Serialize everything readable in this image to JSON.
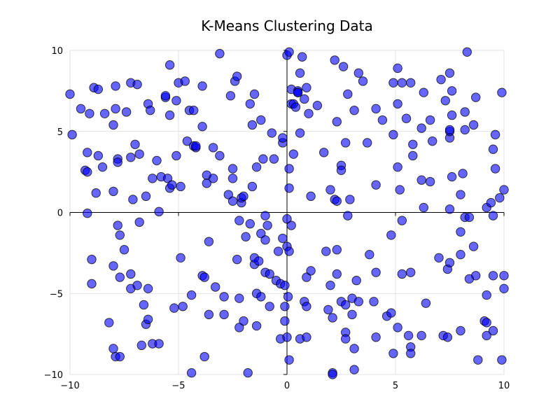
{
  "chart_data": {
    "type": "scatter",
    "title": "K-Means Clustering Data",
    "xlabel": "",
    "ylabel": "",
    "xlim": [
      -10,
      10
    ],
    "ylim": [
      -10,
      10
    ],
    "grid": true,
    "legend": null,
    "zero_lines": true,
    "x_ticks": [
      -10,
      -5,
      0,
      5,
      10
    ],
    "y_ticks": [
      -10,
      -5,
      0,
      5,
      10
    ],
    "x_tick_labels": [
      "−10",
      "−5",
      "0",
      "5",
      "10"
    ],
    "y_tick_labels": [
      "−10",
      "−5",
      "0",
      "5",
      "10"
    ],
    "colors": {
      "point_fill": "#0000ff",
      "point_edge": "#000000",
      "grid": "#d9d9d9",
      "axis": "#000000"
    },
    "series": [
      {
        "points": [
          [
            -10.0,
            7.3
          ],
          [
            -9.9,
            4.8
          ],
          [
            -9.5,
            6.4
          ],
          [
            -9.2,
            3.7
          ],
          [
            -9.3,
            2.6
          ],
          [
            -9.2,
            2.5
          ],
          [
            -9.2,
            -0.05
          ],
          [
            -9.1,
            6.1
          ],
          [
            -9.0,
            -2.9
          ],
          [
            -9.0,
            -4.4
          ],
          [
            -8.9,
            7.7
          ],
          [
            -8.8,
            1.2
          ],
          [
            -8.7,
            3.5
          ],
          [
            -8.7,
            7.6
          ],
          [
            -8.5,
            2.8
          ],
          [
            -8.4,
            6.1
          ],
          [
            -8.2,
            -6.8
          ],
          [
            -8.0,
            5.4
          ],
          [
            -8.0,
            1.3
          ],
          [
            -8.0,
            -3.3
          ],
          [
            -8.0,
            -8.4
          ],
          [
            -7.9,
            7.8
          ],
          [
            -7.9,
            6.4
          ],
          [
            -7.9,
            -8.9
          ],
          [
            -7.8,
            3.3
          ],
          [
            -7.8,
            3.1
          ],
          [
            -7.8,
            -0.8
          ],
          [
            -7.7,
            -1.4
          ],
          [
            -7.7,
            -4.0
          ],
          [
            -7.7,
            -8.9
          ],
          [
            -7.5,
            -2.3
          ],
          [
            -7.4,
            6.2
          ],
          [
            -7.2,
            8.0
          ],
          [
            -7.2,
            3.4
          ],
          [
            -7.2,
            -3.8
          ],
          [
            -7.2,
            -4.7
          ],
          [
            -7.1,
            0.8
          ],
          [
            -7.0,
            4.2
          ],
          [
            -6.9,
            7.9
          ],
          [
            -6.9,
            -4.5
          ],
          [
            -6.8,
            3.6
          ],
          [
            -6.8,
            -0.6
          ],
          [
            -6.7,
            -8.2
          ],
          [
            -6.6,
            -5.7
          ],
          [
            -6.5,
            1.0
          ],
          [
            -6.5,
            -6.9
          ],
          [
            -6.4,
            6.7
          ],
          [
            -6.4,
            -4.7
          ],
          [
            -6.4,
            -6.6
          ],
          [
            -6.3,
            6.3
          ],
          [
            -6.2,
            2.1
          ],
          [
            -6.2,
            -8.1
          ],
          [
            -6.0,
            3.2
          ],
          [
            -5.9,
            -8.1
          ],
          [
            -5.9,
            0.05
          ],
          [
            -5.8,
            2.2
          ],
          [
            -5.6,
            7.1
          ],
          [
            -5.6,
            7.2
          ],
          [
            -5.5,
            2.1
          ],
          [
            -5.4,
            9.1
          ],
          [
            -5.4,
            6.0
          ],
          [
            -5.4,
            1.5
          ],
          [
            -5.3,
            1.7
          ],
          [
            -5.2,
            -5.9
          ],
          [
            -5.1,
            3.5
          ],
          [
            -5.1,
            6.9
          ],
          [
            -5.0,
            8.0
          ],
          [
            -4.9,
            -2.8
          ],
          [
            -4.9,
            1.6
          ],
          [
            -4.8,
            -5.8
          ],
          [
            -4.7,
            8.1
          ],
          [
            -4.6,
            4.4
          ],
          [
            -4.5,
            6.3
          ],
          [
            -4.4,
            -5.1
          ],
          [
            -4.3,
            6.3
          ],
          [
            -4.3,
            4.1
          ],
          [
            -4.2,
            4.0
          ],
          [
            -4.2,
            4.1
          ],
          [
            -4.4,
            -9.9
          ],
          [
            -3.9,
            7.8
          ],
          [
            -3.9,
            5.3
          ],
          [
            -3.9,
            -3.9
          ],
          [
            -3.8,
            -4.0
          ],
          [
            -3.8,
            -8.9
          ],
          [
            -3.7,
            2.3
          ],
          [
            -3.7,
            1.8
          ],
          [
            -3.6,
            -1.8
          ],
          [
            -3.6,
            -6.3
          ],
          [
            -3.4,
            2.1
          ],
          [
            -3.4,
            4.0
          ],
          [
            -3.3,
            -4.6
          ],
          [
            -3.1,
            9.8
          ],
          [
            -3.1,
            3.5
          ],
          [
            -2.9,
            -5.2
          ],
          [
            -2.9,
            -6.3
          ],
          [
            -2.7,
            1.1
          ],
          [
            -2.6,
            7.2
          ],
          [
            -2.5,
            0.7
          ],
          [
            -2.5,
            2.1
          ],
          [
            -2.5,
            2.7
          ],
          [
            -2.4,
            8.1
          ],
          [
            -2.3,
            8.4
          ],
          [
            -2.3,
            -2.9
          ],
          [
            -2.2,
            -0.5
          ],
          [
            -2.2,
            -5.3
          ],
          [
            -2.2,
            -7.1
          ],
          [
            -2.1,
            0.6
          ],
          [
            -2.1,
            0.9
          ],
          [
            -2.0,
            1.0
          ],
          [
            -2.0,
            -6.7
          ],
          [
            -1.9,
            -1.5
          ],
          [
            -1.8,
            -9.9
          ],
          [
            -1.7,
            -0.7
          ],
          [
            -1.7,
            6.7
          ],
          [
            -1.6,
            5.4
          ],
          [
            -1.6,
            1.6
          ],
          [
            -1.5,
            7.3
          ],
          [
            -1.5,
            -3.2
          ],
          [
            -1.5,
            -2.8
          ],
          [
            -1.4,
            2.8
          ],
          [
            -1.4,
            -5.0
          ],
          [
            -1.4,
            -7.0
          ],
          [
            -1.3,
            -3.0
          ],
          [
            -1.2,
            -1.3
          ],
          [
            -1.2,
            -5.2
          ],
          [
            -1.2,
            5.7
          ],
          [
            -1.1,
            3.3
          ],
          [
            -1.0,
            -0.2
          ],
          [
            -1.0,
            -1.7
          ],
          [
            -1.0,
            -3.7
          ],
          [
            -0.9,
            -0.8
          ],
          [
            -0.8,
            -3.8
          ],
          [
            -0.8,
            -5.8
          ],
          [
            -0.7,
            4.9
          ],
          [
            -0.6,
            3.3
          ],
          [
            -0.5,
            -4.2
          ],
          [
            -0.4,
            -2.4
          ],
          [
            -0.3,
            -4.4
          ],
          [
            -0.3,
            -7.8
          ],
          [
            -0.2,
            4.3
          ],
          [
            -0.2,
            4.6
          ],
          [
            -0.2,
            -1.6
          ],
          [
            -0.1,
            -4.5
          ],
          [
            -0.1,
            -5.8
          ],
          [
            -0.1,
            -6.7
          ],
          [
            0.1,
            2.7
          ],
          [
            0.0,
            9.7
          ],
          [
            0.0,
            -2.1
          ],
          [
            0.0,
            -0.4
          ],
          [
            0.0,
            -7.7
          ],
          [
            0.05,
            -5.2
          ],
          [
            0.1,
            1.5
          ],
          [
            0.1,
            9.9
          ],
          [
            0.1,
            -9.1
          ],
          [
            0.1,
            -2.4
          ],
          [
            0.2,
            6.7
          ],
          [
            0.2,
            -0.8
          ],
          [
            0.2,
            7.6
          ],
          [
            0.3,
            3.6
          ],
          [
            0.3,
            6.7
          ],
          [
            0.4,
            6.5
          ],
          [
            0.5,
            7.5
          ],
          [
            0.5,
            7.4
          ],
          [
            0.5,
            7.4
          ],
          [
            0.6,
            4.9
          ],
          [
            0.6,
            8.6
          ],
          [
            0.6,
            -7.8
          ],
          [
            0.7,
            9.6
          ],
          [
            0.8,
            7.0
          ],
          [
            0.8,
            -5.5
          ],
          [
            0.9,
            7.7
          ],
          [
            0.9,
            -5.8
          ],
          [
            0.9,
            -4.0
          ],
          [
            0.9,
            -7.7
          ],
          [
            1.0,
            6.1
          ],
          [
            1.1,
            -3.6
          ],
          [
            1.1,
            1.0
          ],
          [
            1.4,
            6.6
          ],
          [
            1.7,
            3.7
          ],
          [
            1.8,
            -2.4
          ],
          [
            1.9,
            -6.0
          ],
          [
            2.0,
            -4.5
          ],
          [
            2.0,
            1.4
          ],
          [
            2.1,
            -6.5
          ],
          [
            2.1,
            -9.9
          ],
          [
            2.1,
            -10.0
          ],
          [
            2.2,
            9.4
          ],
          [
            2.2,
            0.8
          ],
          [
            2.3,
            5.6
          ],
          [
            2.3,
            0.7
          ],
          [
            2.3,
            -3.8
          ],
          [
            2.3,
            -2.3
          ],
          [
            2.5,
            -5.5
          ],
          [
            2.5,
            2.9
          ],
          [
            2.5,
            2.6
          ],
          [
            2.6,
            9.0
          ],
          [
            2.7,
            -7.4
          ],
          [
            2.7,
            -7.8
          ],
          [
            2.7,
            -5.7
          ],
          [
            2.7,
            4.3
          ],
          [
            2.8,
            -0.2
          ],
          [
            2.8,
            7.3
          ],
          [
            2.9,
            0.8
          ],
          [
            3.0,
            -6.3
          ],
          [
            3.0,
            -5.3
          ],
          [
            3.1,
            6.3
          ],
          [
            3.1,
            -9.7
          ],
          [
            3.1,
            -8.4
          ],
          [
            3.2,
            -4.2
          ],
          [
            3.3,
            8.6
          ],
          [
            3.3,
            -5.5
          ],
          [
            3.5,
            8.1
          ],
          [
            3.7,
            4.3
          ],
          [
            3.8,
            -2.6
          ],
          [
            4.0,
            -5.5
          ],
          [
            4.1,
            1.7
          ],
          [
            4.1,
            6.4
          ],
          [
            4.1,
            -3.7
          ],
          [
            4.1,
            -7.7
          ],
          [
            4.4,
            5.7
          ],
          [
            4.6,
            -6.4
          ],
          [
            4.8,
            -6.2
          ],
          [
            4.8,
            -1.4
          ],
          [
            4.9,
            -8.7
          ],
          [
            4.9,
            8.0
          ],
          [
            4.9,
            4.8
          ],
          [
            5.1,
            8.9
          ],
          [
            5.1,
            -7.1
          ],
          [
            5.1,
            2.8
          ],
          [
            5.1,
            6.7
          ],
          [
            5.2,
            1.4
          ],
          [
            5.3,
            8.0
          ],
          [
            5.3,
            -0.5
          ],
          [
            5.3,
            -3.8
          ],
          [
            5.5,
            5.8
          ],
          [
            5.6,
            -7.6
          ],
          [
            5.7,
            -8.3
          ],
          [
            5.7,
            -8.7
          ],
          [
            5.7,
            8.0
          ],
          [
            5.7,
            -3.7
          ],
          [
            5.8,
            3.5
          ],
          [
            5.8,
            4.2
          ],
          [
            6.2,
            5.2
          ],
          [
            6.2,
            2.0
          ],
          [
            6.2,
            -7.6
          ],
          [
            6.3,
            0.3
          ],
          [
            6.3,
            7.4
          ],
          [
            6.4,
            -5.6
          ],
          [
            6.6,
            1.9
          ],
          [
            6.6,
            5.7
          ],
          [
            6.7,
            4.4
          ],
          [
            7.0,
            -2.8
          ],
          [
            7.1,
            8.2
          ],
          [
            7.2,
            -7.6
          ],
          [
            7.3,
            6.9
          ],
          [
            7.4,
            -3.5
          ],
          [
            7.4,
            -7.7
          ],
          [
            7.5,
            4.6
          ],
          [
            7.5,
            5.0
          ],
          [
            7.5,
            5.1
          ],
          [
            7.5,
            0.2
          ],
          [
            7.5,
            -3.1
          ],
          [
            7.5,
            8.6
          ],
          [
            7.6,
            7.5
          ],
          [
            7.6,
            6.0
          ],
          [
            7.6,
            2.2
          ],
          [
            8.0,
            -1.2
          ],
          [
            8.0,
            -2.6
          ],
          [
            8.0,
            1.1
          ],
          [
            8.0,
            -7.3
          ],
          [
            8.1,
            2.4
          ],
          [
            8.2,
            5.1
          ],
          [
            8.2,
            6.2
          ],
          [
            8.2,
            -0.3
          ],
          [
            8.3,
            9.9
          ],
          [
            8.4,
            -0.3
          ],
          [
            8.4,
            -4.1
          ],
          [
            8.6,
            -2.1
          ],
          [
            8.6,
            5.4
          ],
          [
            8.7,
            7.1
          ],
          [
            8.7,
            -3.9
          ],
          [
            8.8,
            -9.1
          ],
          [
            9.1,
            -6.7
          ],
          [
            9.2,
            0.3
          ],
          [
            9.2,
            -5.1
          ],
          [
            9.2,
            -6.8
          ],
          [
            9.2,
            -7.6
          ],
          [
            9.4,
            0.6
          ],
          [
            9.5,
            3.9
          ],
          [
            9.5,
            -0.2
          ],
          [
            9.5,
            -3.9
          ],
          [
            9.5,
            -7.3
          ],
          [
            9.6,
            2.7
          ],
          [
            9.6,
            4.8
          ],
          [
            9.8,
            0.9
          ],
          [
            9.9,
            7.4
          ],
          [
            9.9,
            -9.1
          ],
          [
            10.0,
            -4.7
          ],
          [
            10.0,
            -3.9
          ],
          [
            10.0,
            1.4
          ]
        ]
      }
    ]
  }
}
